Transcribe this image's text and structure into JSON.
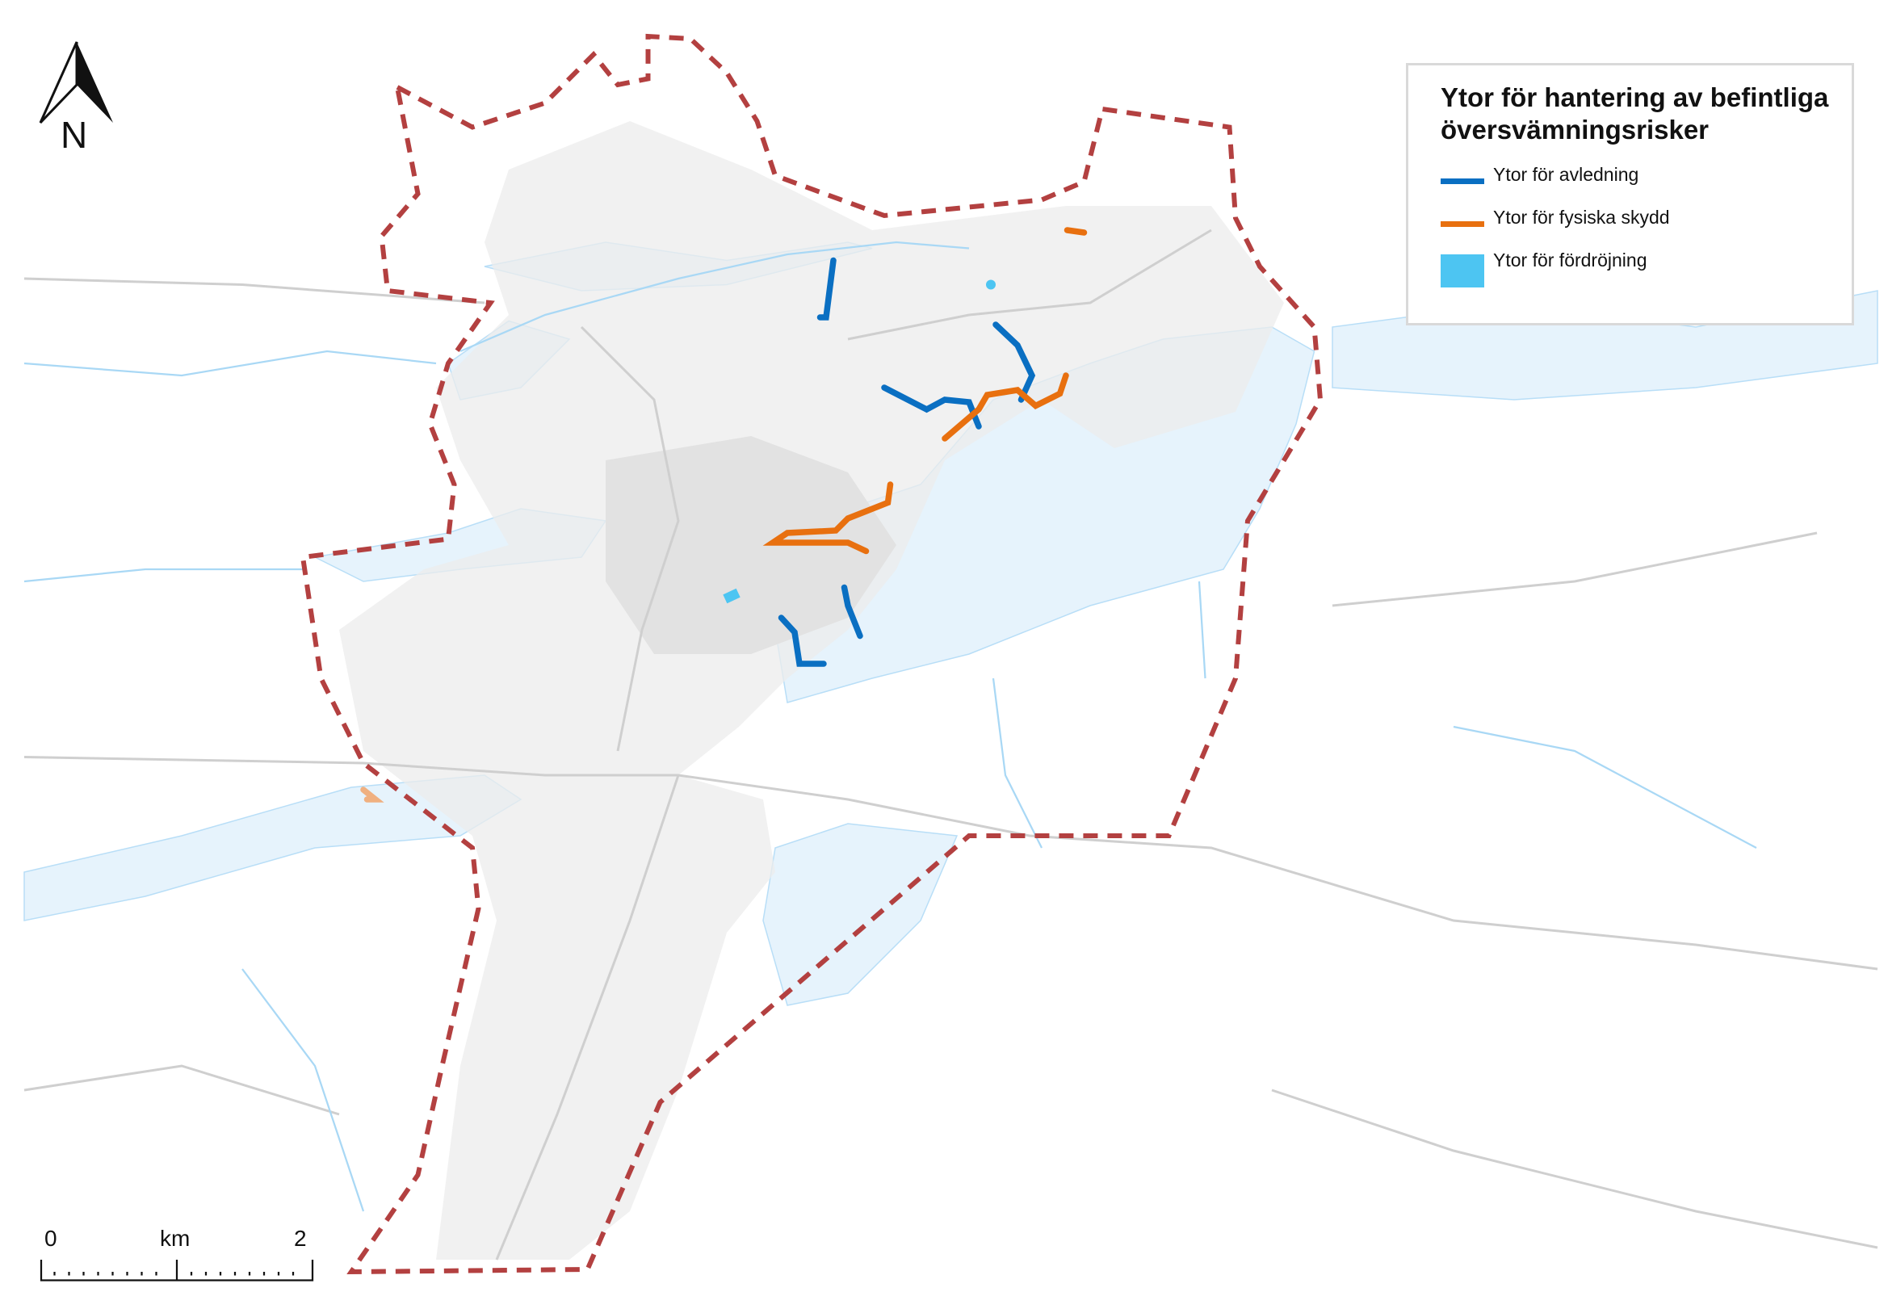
{
  "legend": {
    "title": "Ytor för hantering av befintliga översvämningsrisker",
    "items": [
      {
        "label": "Ytor för avledning",
        "symbol": "line",
        "color": "#0a6fc2"
      },
      {
        "label": "Ytor för fysiska skydd",
        "symbol": "line",
        "color": "#e8700f"
      },
      {
        "label": "Ytor för fördröjning",
        "symbol": "fill",
        "color": "#4dc5f2"
      }
    ]
  },
  "north_arrow": {
    "label": "N"
  },
  "scale_bar": {
    "start": "0",
    "unit": "km",
    "end": "2"
  },
  "colors": {
    "boundary": "#b34040",
    "water": "#e6f3fc",
    "stream": "#a9d8f5",
    "urban": "#ececec",
    "road": "#cfcfcf"
  }
}
